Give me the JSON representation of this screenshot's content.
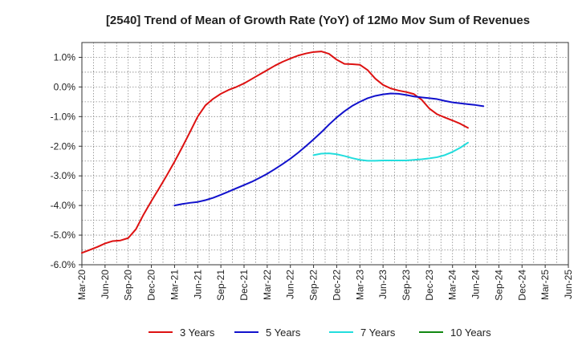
{
  "chart_data": {
    "type": "line",
    "title": "[2540]  Trend of Mean of Growth Rate (YoY) of 12Mo Mov Sum of Revenues",
    "xlabel": "",
    "ylabel": "",
    "ylim": [
      -6.0,
      1.5
    ],
    "y_ticks": [
      1.0,
      0.0,
      -1.0,
      -2.0,
      -3.0,
      -4.0,
      -5.0,
      -6.0
    ],
    "y_tick_labels": [
      "1.0%",
      "0.0%",
      "-1.0%",
      "-2.0%",
      "-3.0%",
      "-4.0%",
      "-5.0%",
      "-6.0%"
    ],
    "x_tick_labels": [
      "Mar-20",
      "Jun-20",
      "Sep-20",
      "Dec-20",
      "Mar-21",
      "Jun-21",
      "Sep-21",
      "Dec-21",
      "Mar-22",
      "Jun-22",
      "Sep-22",
      "Dec-22",
      "Mar-23",
      "Jun-23",
      "Sep-23",
      "Dec-23",
      "Mar-24",
      "Jun-24",
      "Sep-24",
      "Dec-24",
      "Mar-25",
      "Jun-25"
    ],
    "grid": true,
    "legend_position": "bottom",
    "series": [
      {
        "name": "3 Years",
        "color": "#dd1111",
        "start_index": 0,
        "values": [
          -5.6,
          -5.5,
          -5.4,
          -5.28,
          -5.2,
          -5.18,
          -5.1,
          -4.8,
          -4.3,
          -3.85,
          -3.42,
          -2.98,
          -2.52,
          -2.03,
          -1.52,
          -1.0,
          -0.62,
          -0.4,
          -0.23,
          -0.1,
          0.0,
          0.12,
          0.27,
          0.42,
          0.57,
          0.72,
          0.85,
          0.96,
          1.06,
          1.13,
          1.18,
          1.2,
          1.12,
          0.92,
          0.78,
          0.77,
          0.75,
          0.57,
          0.28,
          0.07,
          -0.05,
          -0.12,
          -0.17,
          -0.24,
          -0.43,
          -0.73,
          -0.92,
          -1.03,
          -1.13,
          -1.24,
          -1.38
        ]
      },
      {
        "name": "5 Years",
        "color": "#1111cc",
        "start_index": 12,
        "values": [
          -4.0,
          -3.95,
          -3.91,
          -3.88,
          -3.82,
          -3.74,
          -3.64,
          -3.53,
          -3.42,
          -3.31,
          -3.2,
          -3.07,
          -2.93,
          -2.77,
          -2.6,
          -2.42,
          -2.22,
          -2.0,
          -1.77,
          -1.53,
          -1.27,
          -1.03,
          -0.82,
          -0.64,
          -0.5,
          -0.38,
          -0.3,
          -0.25,
          -0.22,
          -0.23,
          -0.27,
          -0.32,
          -0.35,
          -0.38,
          -0.41,
          -0.47,
          -0.52,
          -0.55,
          -0.58,
          -0.61,
          -0.65
        ]
      },
      {
        "name": "7 Years",
        "color": "#22dddd",
        "start_index": 30,
        "values": [
          -2.3,
          -2.25,
          -2.24,
          -2.27,
          -2.33,
          -2.4,
          -2.46,
          -2.49,
          -2.49,
          -2.48,
          -2.48,
          -2.48,
          -2.48,
          -2.46,
          -2.44,
          -2.41,
          -2.37,
          -2.3,
          -2.19,
          -2.05,
          -1.88
        ]
      },
      {
        "name": "10 Years",
        "color": "#118811",
        "start_index": 0,
        "values": []
      }
    ]
  }
}
